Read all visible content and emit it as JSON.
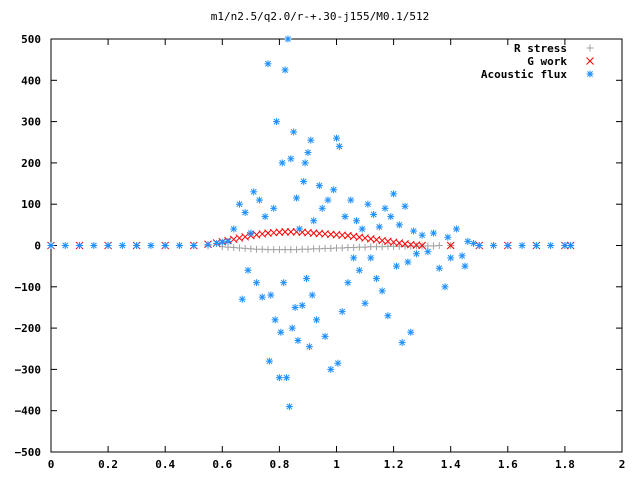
{
  "chart_data": {
    "type": "scatter",
    "title": "m1/n2.5/q2.0/r-+.30-j155/M0.1/512",
    "xlabel": "",
    "ylabel": "",
    "xlim": [
      0,
      2
    ],
    "ylim": [
      -500,
      500
    ],
    "xticks": [
      "0",
      "0.2",
      "0.4",
      "0.6",
      "0.8",
      "1",
      "1.2",
      "1.4",
      "1.6",
      "1.8",
      "2"
    ],
    "yticks": [
      "500",
      "400",
      "300",
      "200",
      "100",
      "0",
      "−100",
      "−200",
      "−300",
      "−400",
      "−500"
    ],
    "grid": false,
    "legend_position": "top-right",
    "series": [
      {
        "name": "R stress",
        "marker": "plus",
        "color": "#a0a0a0",
        "points": [
          [
            0.0,
            0
          ],
          [
            0.1,
            0
          ],
          [
            0.2,
            0
          ],
          [
            0.3,
            0
          ],
          [
            0.4,
            0
          ],
          [
            0.5,
            0
          ],
          [
            0.55,
            -1
          ],
          [
            0.6,
            -3
          ],
          [
            0.62,
            -4
          ],
          [
            0.64,
            -5
          ],
          [
            0.66,
            -6
          ],
          [
            0.68,
            -7
          ],
          [
            0.7,
            -8
          ],
          [
            0.72,
            -9
          ],
          [
            0.74,
            -9
          ],
          [
            0.76,
            -10
          ],
          [
            0.78,
            -10
          ],
          [
            0.8,
            -10
          ],
          [
            0.82,
            -10
          ],
          [
            0.84,
            -10
          ],
          [
            0.86,
            -10
          ],
          [
            0.88,
            -9
          ],
          [
            0.9,
            -9
          ],
          [
            0.92,
            -8
          ],
          [
            0.94,
            -8
          ],
          [
            0.96,
            -7
          ],
          [
            0.98,
            -7
          ],
          [
            1.0,
            -6
          ],
          [
            1.02,
            -6
          ],
          [
            1.04,
            -5
          ],
          [
            1.06,
            -5
          ],
          [
            1.08,
            -4
          ],
          [
            1.1,
            -4
          ],
          [
            1.12,
            -3
          ],
          [
            1.14,
            -3
          ],
          [
            1.16,
            -3
          ],
          [
            1.18,
            -2
          ],
          [
            1.2,
            -2
          ],
          [
            1.22,
            -2
          ],
          [
            1.24,
            -2
          ],
          [
            1.26,
            -1
          ],
          [
            1.28,
            -1
          ],
          [
            1.3,
            -1
          ],
          [
            1.32,
            -1
          ],
          [
            1.34,
            -1
          ],
          [
            1.36,
            0
          ],
          [
            1.4,
            0
          ],
          [
            1.5,
            0
          ],
          [
            1.6,
            0
          ],
          [
            1.7,
            0
          ],
          [
            1.8,
            0
          ],
          [
            1.82,
            0
          ]
        ]
      },
      {
        "name": "G work",
        "marker": "cross",
        "color": "#ff0000",
        "points": [
          [
            0.0,
            0
          ],
          [
            0.1,
            0
          ],
          [
            0.2,
            0
          ],
          [
            0.3,
            0
          ],
          [
            0.4,
            0
          ],
          [
            0.5,
            0
          ],
          [
            0.55,
            3
          ],
          [
            0.58,
            6
          ],
          [
            0.6,
            9
          ],
          [
            0.62,
            12
          ],
          [
            0.64,
            15
          ],
          [
            0.66,
            18
          ],
          [
            0.68,
            21
          ],
          [
            0.7,
            24
          ],
          [
            0.72,
            26
          ],
          [
            0.74,
            28
          ],
          [
            0.76,
            30
          ],
          [
            0.78,
            31
          ],
          [
            0.8,
            32
          ],
          [
            0.82,
            33
          ],
          [
            0.84,
            33
          ],
          [
            0.86,
            33
          ],
          [
            0.88,
            32
          ],
          [
            0.9,
            31
          ],
          [
            0.92,
            30
          ],
          [
            0.94,
            29
          ],
          [
            0.96,
            28
          ],
          [
            0.98,
            27
          ],
          [
            1.0,
            26
          ],
          [
            1.02,
            25
          ],
          [
            1.04,
            24
          ],
          [
            1.06,
            22
          ],
          [
            1.08,
            20
          ],
          [
            1.1,
            18
          ],
          [
            1.12,
            16
          ],
          [
            1.14,
            14
          ],
          [
            1.16,
            12
          ],
          [
            1.18,
            10
          ],
          [
            1.2,
            8
          ],
          [
            1.22,
            6
          ],
          [
            1.24,
            4
          ],
          [
            1.26,
            2
          ],
          [
            1.28,
            1
          ],
          [
            1.3,
            0
          ],
          [
            1.4,
            0
          ],
          [
            1.5,
            0
          ],
          [
            1.6,
            0
          ],
          [
            1.7,
            0
          ],
          [
            1.8,
            0
          ],
          [
            1.82,
            0
          ]
        ]
      },
      {
        "name": "Acoustic flux",
        "marker": "star",
        "color": "#1e90ff",
        "points": [
          [
            0.0,
            0
          ],
          [
            0.05,
            0
          ],
          [
            0.1,
            0
          ],
          [
            0.15,
            0
          ],
          [
            0.2,
            0
          ],
          [
            0.25,
            0
          ],
          [
            0.3,
            0
          ],
          [
            0.35,
            0
          ],
          [
            0.4,
            0
          ],
          [
            0.45,
            0
          ],
          [
            0.5,
            0
          ],
          [
            0.55,
            2
          ],
          [
            0.58,
            5
          ],
          [
            0.6,
            8
          ],
          [
            0.62,
            10
          ],
          [
            0.64,
            40
          ],
          [
            0.66,
            100
          ],
          [
            0.67,
            -130
          ],
          [
            0.68,
            80
          ],
          [
            0.69,
            -60
          ],
          [
            0.7,
            30
          ],
          [
            0.71,
            130
          ],
          [
            0.72,
            -90
          ],
          [
            0.73,
            110
          ],
          [
            0.74,
            -125
          ],
          [
            0.75,
            70
          ],
          [
            0.76,
            440
          ],
          [
            0.765,
            -280
          ],
          [
            0.77,
            -120
          ],
          [
            0.78,
            90
          ],
          [
            0.785,
            -180
          ],
          [
            0.79,
            300
          ],
          [
            0.8,
            -320
          ],
          [
            0.805,
            -210
          ],
          [
            0.81,
            200
          ],
          [
            0.815,
            -90
          ],
          [
            0.82,
            425
          ],
          [
            0.825,
            -320
          ],
          [
            0.83,
            500
          ],
          [
            0.835,
            -390
          ],
          [
            0.84,
            210
          ],
          [
            0.845,
            -200
          ],
          [
            0.85,
            275
          ],
          [
            0.855,
            -150
          ],
          [
            0.86,
            115
          ],
          [
            0.865,
            -230
          ],
          [
            0.87,
            40
          ],
          [
            0.88,
            -145
          ],
          [
            0.885,
            155
          ],
          [
            0.89,
            200
          ],
          [
            0.895,
            -80
          ],
          [
            0.9,
            225
          ],
          [
            0.905,
            -245
          ],
          [
            0.91,
            255
          ],
          [
            0.915,
            -120
          ],
          [
            0.92,
            60
          ],
          [
            0.93,
            -180
          ],
          [
            0.94,
            145
          ],
          [
            0.95,
            90
          ],
          [
            0.96,
            -220
          ],
          [
            0.97,
            110
          ],
          [
            0.98,
            -300
          ],
          [
            0.99,
            135
          ],
          [
            1.0,
            260
          ],
          [
            1.005,
            -285
          ],
          [
            1.01,
            240
          ],
          [
            1.02,
            -160
          ],
          [
            1.03,
            70
          ],
          [
            1.04,
            -90
          ],
          [
            1.05,
            110
          ],
          [
            1.06,
            -30
          ],
          [
            1.07,
            60
          ],
          [
            1.08,
            -60
          ],
          [
            1.09,
            40
          ],
          [
            1.1,
            -140
          ],
          [
            1.11,
            100
          ],
          [
            1.12,
            -30
          ],
          [
            1.13,
            75
          ],
          [
            1.14,
            -80
          ],
          [
            1.15,
            45
          ],
          [
            1.16,
            -110
          ],
          [
            1.17,
            90
          ],
          [
            1.18,
            -170
          ],
          [
            1.19,
            70
          ],
          [
            1.2,
            125
          ],
          [
            1.21,
            -50
          ],
          [
            1.22,
            50
          ],
          [
            1.23,
            -235
          ],
          [
            1.24,
            95
          ],
          [
            1.25,
            -40
          ],
          [
            1.26,
            -210
          ],
          [
            1.27,
            35
          ],
          [
            1.28,
            -20
          ],
          [
            1.3,
            25
          ],
          [
            1.32,
            -15
          ],
          [
            1.34,
            30
          ],
          [
            1.36,
            -55
          ],
          [
            1.38,
            -100
          ],
          [
            1.39,
            20
          ],
          [
            1.4,
            -30
          ],
          [
            1.42,
            40
          ],
          [
            1.44,
            -25
          ],
          [
            1.45,
            -50
          ],
          [
            1.46,
            10
          ],
          [
            1.48,
            5
          ],
          [
            1.5,
            0
          ],
          [
            1.55,
            0
          ],
          [
            1.6,
            0
          ],
          [
            1.65,
            0
          ],
          [
            1.7,
            0
          ],
          [
            1.75,
            0
          ],
          [
            1.8,
            0
          ],
          [
            1.82,
            0
          ]
        ]
      }
    ]
  }
}
